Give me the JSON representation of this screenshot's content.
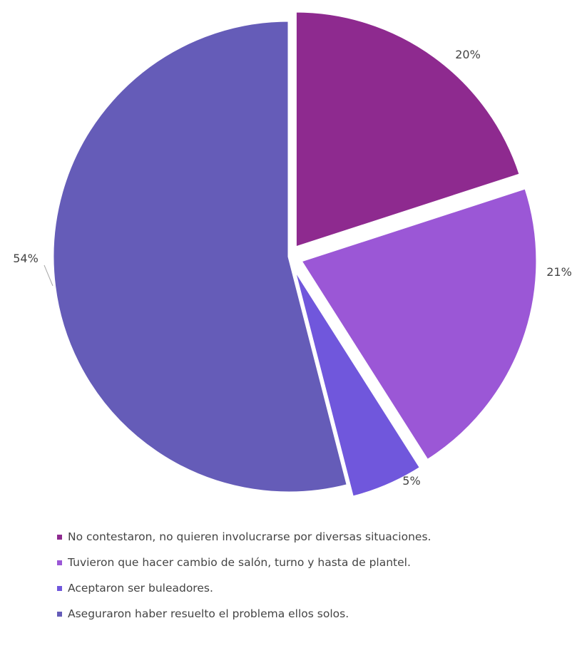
{
  "chart_data": {
    "type": "pie",
    "slices": [
      {
        "label": "No contestaron, no quieren involucrarse por diversas situaciones.",
        "value": 20,
        "value_label": "20%",
        "color": "#8e2a8f"
      },
      {
        "label": "Tuvieron que hacer cambio de salón, turno y hasta de plantel.",
        "value": 21,
        "value_label": "21%",
        "color": "#9b57d6"
      },
      {
        "label": "Aceptaron ser buleadores.",
        "value": 5,
        "value_label": "5%",
        "color": "#7057dc"
      },
      {
        "label": "Aseguraron haber resuelto el problema ellos solos.",
        "value": 54,
        "value_label": "54%",
        "color": "#655cb8"
      }
    ],
    "start_angle": "12 o'clock",
    "direction": "clockwise",
    "exploded": true,
    "legend_position": "bottom"
  }
}
